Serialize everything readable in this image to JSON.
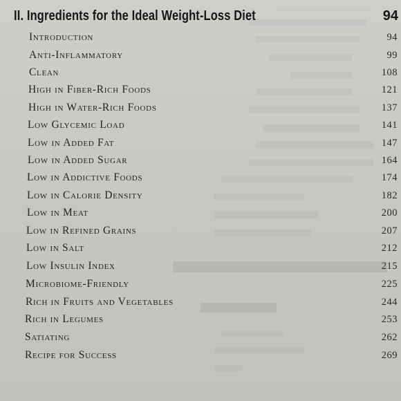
{
  "section": {
    "title": "II. Ingredients for the Ideal Weight-Loss Diet",
    "page": "94"
  },
  "entries": [
    {
      "label": "Introduction",
      "page": "94"
    },
    {
      "label": "Anti-Inflammatory",
      "page": "99"
    },
    {
      "label": "Clean",
      "page": "108"
    },
    {
      "label": "High in Fiber-Rich Foods",
      "page": "121"
    },
    {
      "label": "High in Water-Rich Foods",
      "page": "137"
    },
    {
      "label": "Low Glycemic Load",
      "page": "141"
    },
    {
      "label": "Low in Added Fat",
      "page": "147"
    },
    {
      "label": "Low in Added Sugar",
      "page": "164"
    },
    {
      "label": "Low in Addictive Foods",
      "page": "174"
    },
    {
      "label": "Low in Calorie Density",
      "page": "182"
    },
    {
      "label": "Low in Meat",
      "page": "200"
    },
    {
      "label": "Low in Refined Grains",
      "page": "207"
    },
    {
      "label": "Low in Salt",
      "page": "212"
    },
    {
      "label": "Low Insulin Index",
      "page": "215"
    },
    {
      "label": "Microbiome-Friendly",
      "page": "225"
    },
    {
      "label": "Rich in Fruits and Vegetables",
      "page": "244"
    },
    {
      "label": "Rich in Legumes",
      "page": "253"
    },
    {
      "label": "Satiating",
      "page": "262"
    },
    {
      "label": "Recipe for Success",
      "page": "269"
    }
  ]
}
